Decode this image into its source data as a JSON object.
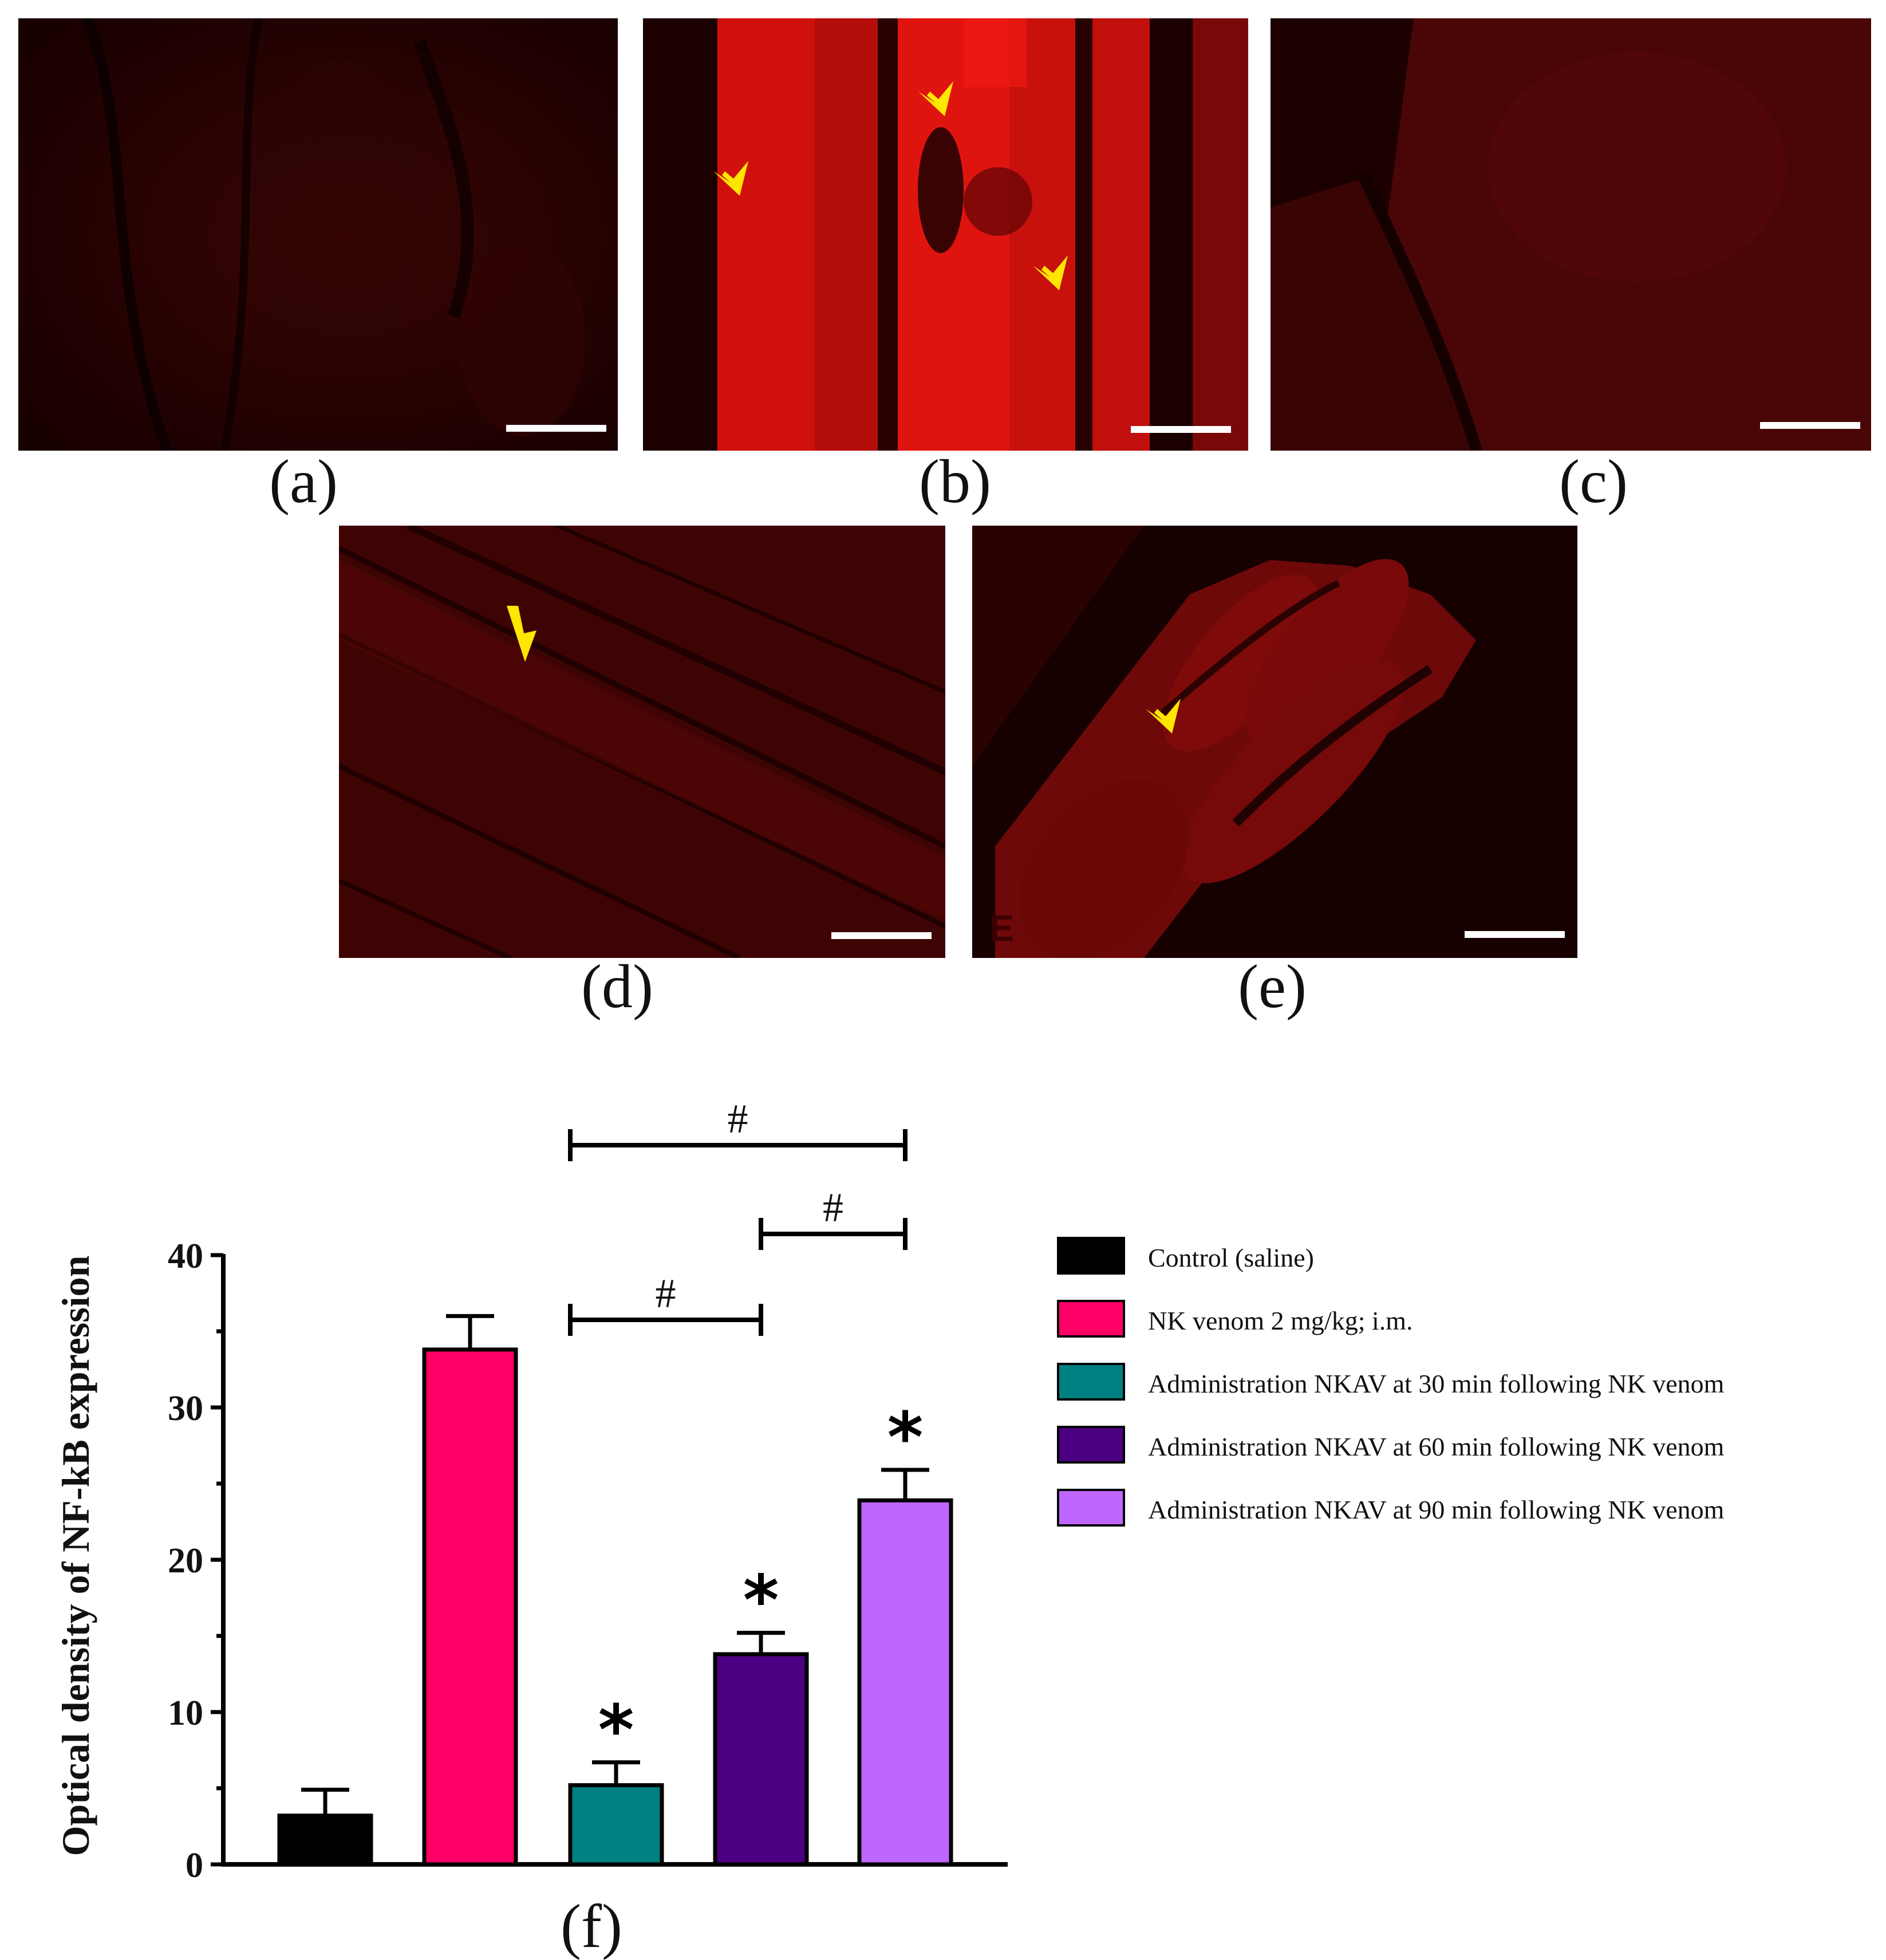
{
  "panels": [
    {
      "label": "(a)",
      "arrows": 0,
      "corner_mark": ""
    },
    {
      "label": "(b)",
      "arrows": 3,
      "corner_mark": ""
    },
    {
      "label": "(c)",
      "arrows": 0,
      "corner_mark": ""
    },
    {
      "label": "(d)",
      "arrows": 1,
      "corner_mark": ""
    },
    {
      "label": "(e)",
      "arrows": 1,
      "corner_mark": "E"
    }
  ],
  "colors": {
    "control": "#000000",
    "nk_venom": "#ff0066",
    "nkav30": "#008080",
    "nkav60": "#4b0082",
    "nkav90": "#bf66ff",
    "arrow": "#ffe600"
  },
  "chart_data": {
    "type": "bar",
    "panel_label": "(f)",
    "ylabel": "Optical density of NF-kB expression",
    "xlabel": "",
    "ylim": [
      0,
      40
    ],
    "yticks": [
      "0",
      "10",
      "20",
      "30",
      "40"
    ],
    "grid": false,
    "legend_position": "right",
    "series": [
      {
        "name": "Control (saline)",
        "value": 3.2,
        "error": 1.7,
        "color": "#000000",
        "sig": ""
      },
      {
        "name": "NK venom 2 mg/kg; i.m.",
        "value": 33.8,
        "error": 2.2,
        "color": "#ff0066",
        "sig": ""
      },
      {
        "name": "Administration NKAV at 30 min following NK venom",
        "value": 5.2,
        "error": 1.5,
        "color": "#008080",
        "sig": "*"
      },
      {
        "name": "Administration NKAV at 60 min following NK venom",
        "value": 13.8,
        "error": 1.4,
        "color": "#4b0082",
        "sig": "*"
      },
      {
        "name": "Administration NKAV at 90 min following NK venom",
        "value": 23.9,
        "error": 2.0,
        "color": "#bf66ff",
        "sig": "*"
      }
    ],
    "brackets": [
      {
        "from": 2,
        "to": 4,
        "label": "#"
      },
      {
        "from": 3,
        "to": 4,
        "label": "#"
      },
      {
        "from": 2,
        "to": 3,
        "label": "#"
      }
    ]
  }
}
